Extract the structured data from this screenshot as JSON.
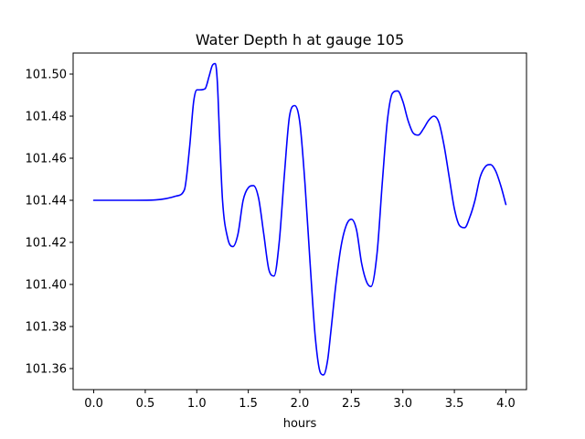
{
  "chart_data": {
    "type": "line",
    "title": "Water Depth h at gauge 105",
    "xlabel": "hours",
    "ylabel": "",
    "xlim": [
      -0.2,
      4.2
    ],
    "ylim": [
      101.35,
      101.51
    ],
    "xticks": [
      0.0,
      0.5,
      1.0,
      1.5,
      2.0,
      2.5,
      3.0,
      3.5,
      4.0
    ],
    "xtick_labels": [
      "0.0",
      "0.5",
      "1.0",
      "1.5",
      "2.0",
      "2.5",
      "3.0",
      "3.5",
      "4.0"
    ],
    "yticks": [
      101.36,
      101.38,
      101.4,
      101.42,
      101.44,
      101.46,
      101.48,
      101.5
    ],
    "ytick_labels": [
      "101.36",
      "101.38",
      "101.40",
      "101.42",
      "101.44",
      "101.46",
      "101.48",
      "101.50"
    ],
    "grid": false,
    "series": [
      {
        "color": "#0000ff",
        "x": [
          0.0,
          0.2,
          0.4,
          0.6,
          0.7,
          0.8,
          0.88,
          0.93,
          0.97,
          1.0,
          1.03,
          1.08,
          1.12,
          1.15,
          1.18,
          1.2,
          1.22,
          1.25,
          1.3,
          1.35,
          1.4,
          1.45,
          1.5,
          1.55,
          1.6,
          1.65,
          1.7,
          1.75,
          1.8,
          1.85,
          1.9,
          1.95,
          2.0,
          2.05,
          2.1,
          2.15,
          2.2,
          2.23,
          2.27,
          2.3,
          2.35,
          2.4,
          2.45,
          2.5,
          2.55,
          2.6,
          2.65,
          2.69,
          2.75,
          2.8,
          2.85,
          2.9,
          2.95,
          3.0,
          3.05,
          3.1,
          3.15,
          3.2,
          3.25,
          3.3,
          3.35,
          3.4,
          3.45,
          3.5,
          3.55,
          3.6,
          3.65,
          3.7,
          3.75,
          3.8,
          3.85,
          3.9,
          3.95,
          4.0
        ],
        "y": [
          101.44,
          101.44,
          101.44,
          101.4402,
          101.4408,
          101.442,
          101.445,
          101.465,
          101.487,
          101.4925,
          101.4925,
          101.493,
          101.499,
          101.504,
          101.505,
          101.496,
          101.472,
          101.44,
          101.422,
          101.418,
          101.424,
          101.44,
          101.446,
          101.447,
          101.441,
          101.424,
          101.407,
          101.404,
          101.42,
          101.452,
          101.48,
          101.485,
          101.477,
          101.448,
          101.41,
          101.375,
          101.358,
          101.357,
          101.364,
          101.377,
          101.4,
          101.418,
          101.428,
          101.431,
          101.426,
          101.41,
          101.401,
          101.399,
          101.415,
          101.448,
          101.478,
          101.491,
          101.492,
          101.487,
          101.478,
          101.472,
          101.471,
          101.474,
          101.478,
          101.48,
          101.477,
          101.466,
          101.451,
          101.436,
          101.428,
          101.427,
          101.432,
          101.44,
          101.451,
          101.456,
          101.457,
          101.454,
          101.447,
          101.438
        ]
      }
    ]
  }
}
